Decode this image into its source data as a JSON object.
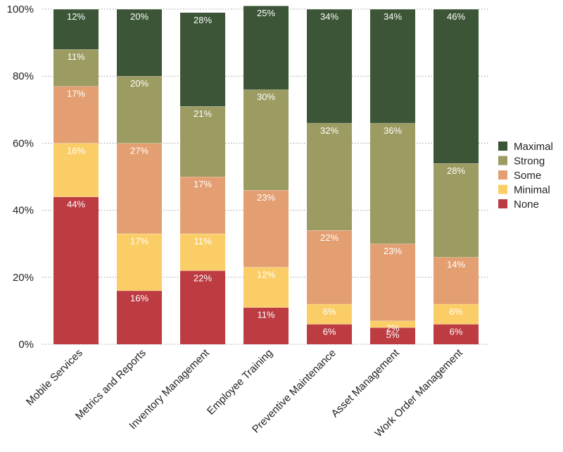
{
  "chart_data": {
    "type": "bar",
    "stacked": true,
    "title": "",
    "xlabel": "",
    "ylabel": "",
    "ylim": [
      0,
      100
    ],
    "yticks": [
      "0%",
      "20%",
      "40%",
      "60%",
      "80%",
      "100%"
    ],
    "grid": true,
    "legend_position": "right",
    "categories": [
      "Mobile Services",
      "Metrics and Reports",
      "Inventory Management",
      "Employee Training",
      "Preventive Maintenance",
      "Asset Management",
      "Work Order Management"
    ],
    "series": [
      {
        "name": "None",
        "color": "#bc3c42",
        "values": [
          44,
          16,
          22,
          11,
          6,
          5,
          6
        ],
        "labels": [
          "44%",
          "16%",
          "22%",
          "11%",
          "6%",
          "5%",
          "6%"
        ]
      },
      {
        "name": "Minimal",
        "color": "#fbcd67",
        "values": [
          16,
          17,
          11,
          12,
          6,
          2,
          6
        ],
        "labels": [
          "16%",
          "17%",
          "11%",
          "12%",
          "6%",
          "2%",
          "6%"
        ]
      },
      {
        "name": "Some",
        "color": "#e39f71",
        "values": [
          17,
          27,
          17,
          23,
          22,
          23,
          14
        ],
        "labels": [
          "17%",
          "27%",
          "17%",
          "23%",
          "22%",
          "23%",
          "14%"
        ]
      },
      {
        "name": "Strong",
        "color": "#9b9b62",
        "values": [
          11,
          20,
          21,
          30,
          32,
          36,
          28
        ],
        "labels": [
          "11%",
          "20%",
          "21%",
          "30%",
          "32%",
          "36%",
          "28%"
        ]
      },
      {
        "name": "Maximal",
        "color": "#3b5536",
        "values": [
          12,
          20,
          28,
          25,
          34,
          34,
          46
        ],
        "labels": [
          "12%",
          "20%",
          "28%",
          "25%",
          "34%",
          "34%",
          "46%"
        ]
      }
    ],
    "legend_order": [
      "Maximal",
      "Strong",
      "Some",
      "Minimal",
      "None"
    ]
  }
}
